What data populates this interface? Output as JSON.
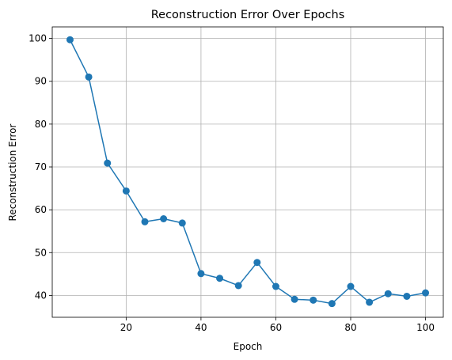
{
  "chart_data": {
    "type": "line",
    "title": "Reconstruction Error Over Epochs",
    "xlabel": "Epoch",
    "ylabel": "Reconstruction Error",
    "xlim": [
      0.25,
      104.75
    ],
    "ylim": [
      34.9,
      102.7
    ],
    "xticks": [
      20,
      40,
      60,
      80,
      100
    ],
    "yticks": [
      40,
      50,
      60,
      70,
      80,
      90,
      100
    ],
    "grid": true,
    "series": [
      {
        "color": "#1f77b4",
        "marker": "circle",
        "x": [
          5,
          10,
          15,
          20,
          25,
          30,
          35,
          40,
          45,
          50,
          55,
          60,
          65,
          70,
          75,
          80,
          85,
          90,
          95,
          100
        ],
        "y": [
          99.7,
          91.0,
          70.9,
          64.4,
          57.2,
          57.9,
          56.9,
          45.1,
          44.0,
          42.3,
          47.7,
          42.1,
          39.1,
          38.9,
          38.1,
          42.1,
          38.4,
          40.4,
          39.8,
          40.6
        ]
      }
    ]
  }
}
